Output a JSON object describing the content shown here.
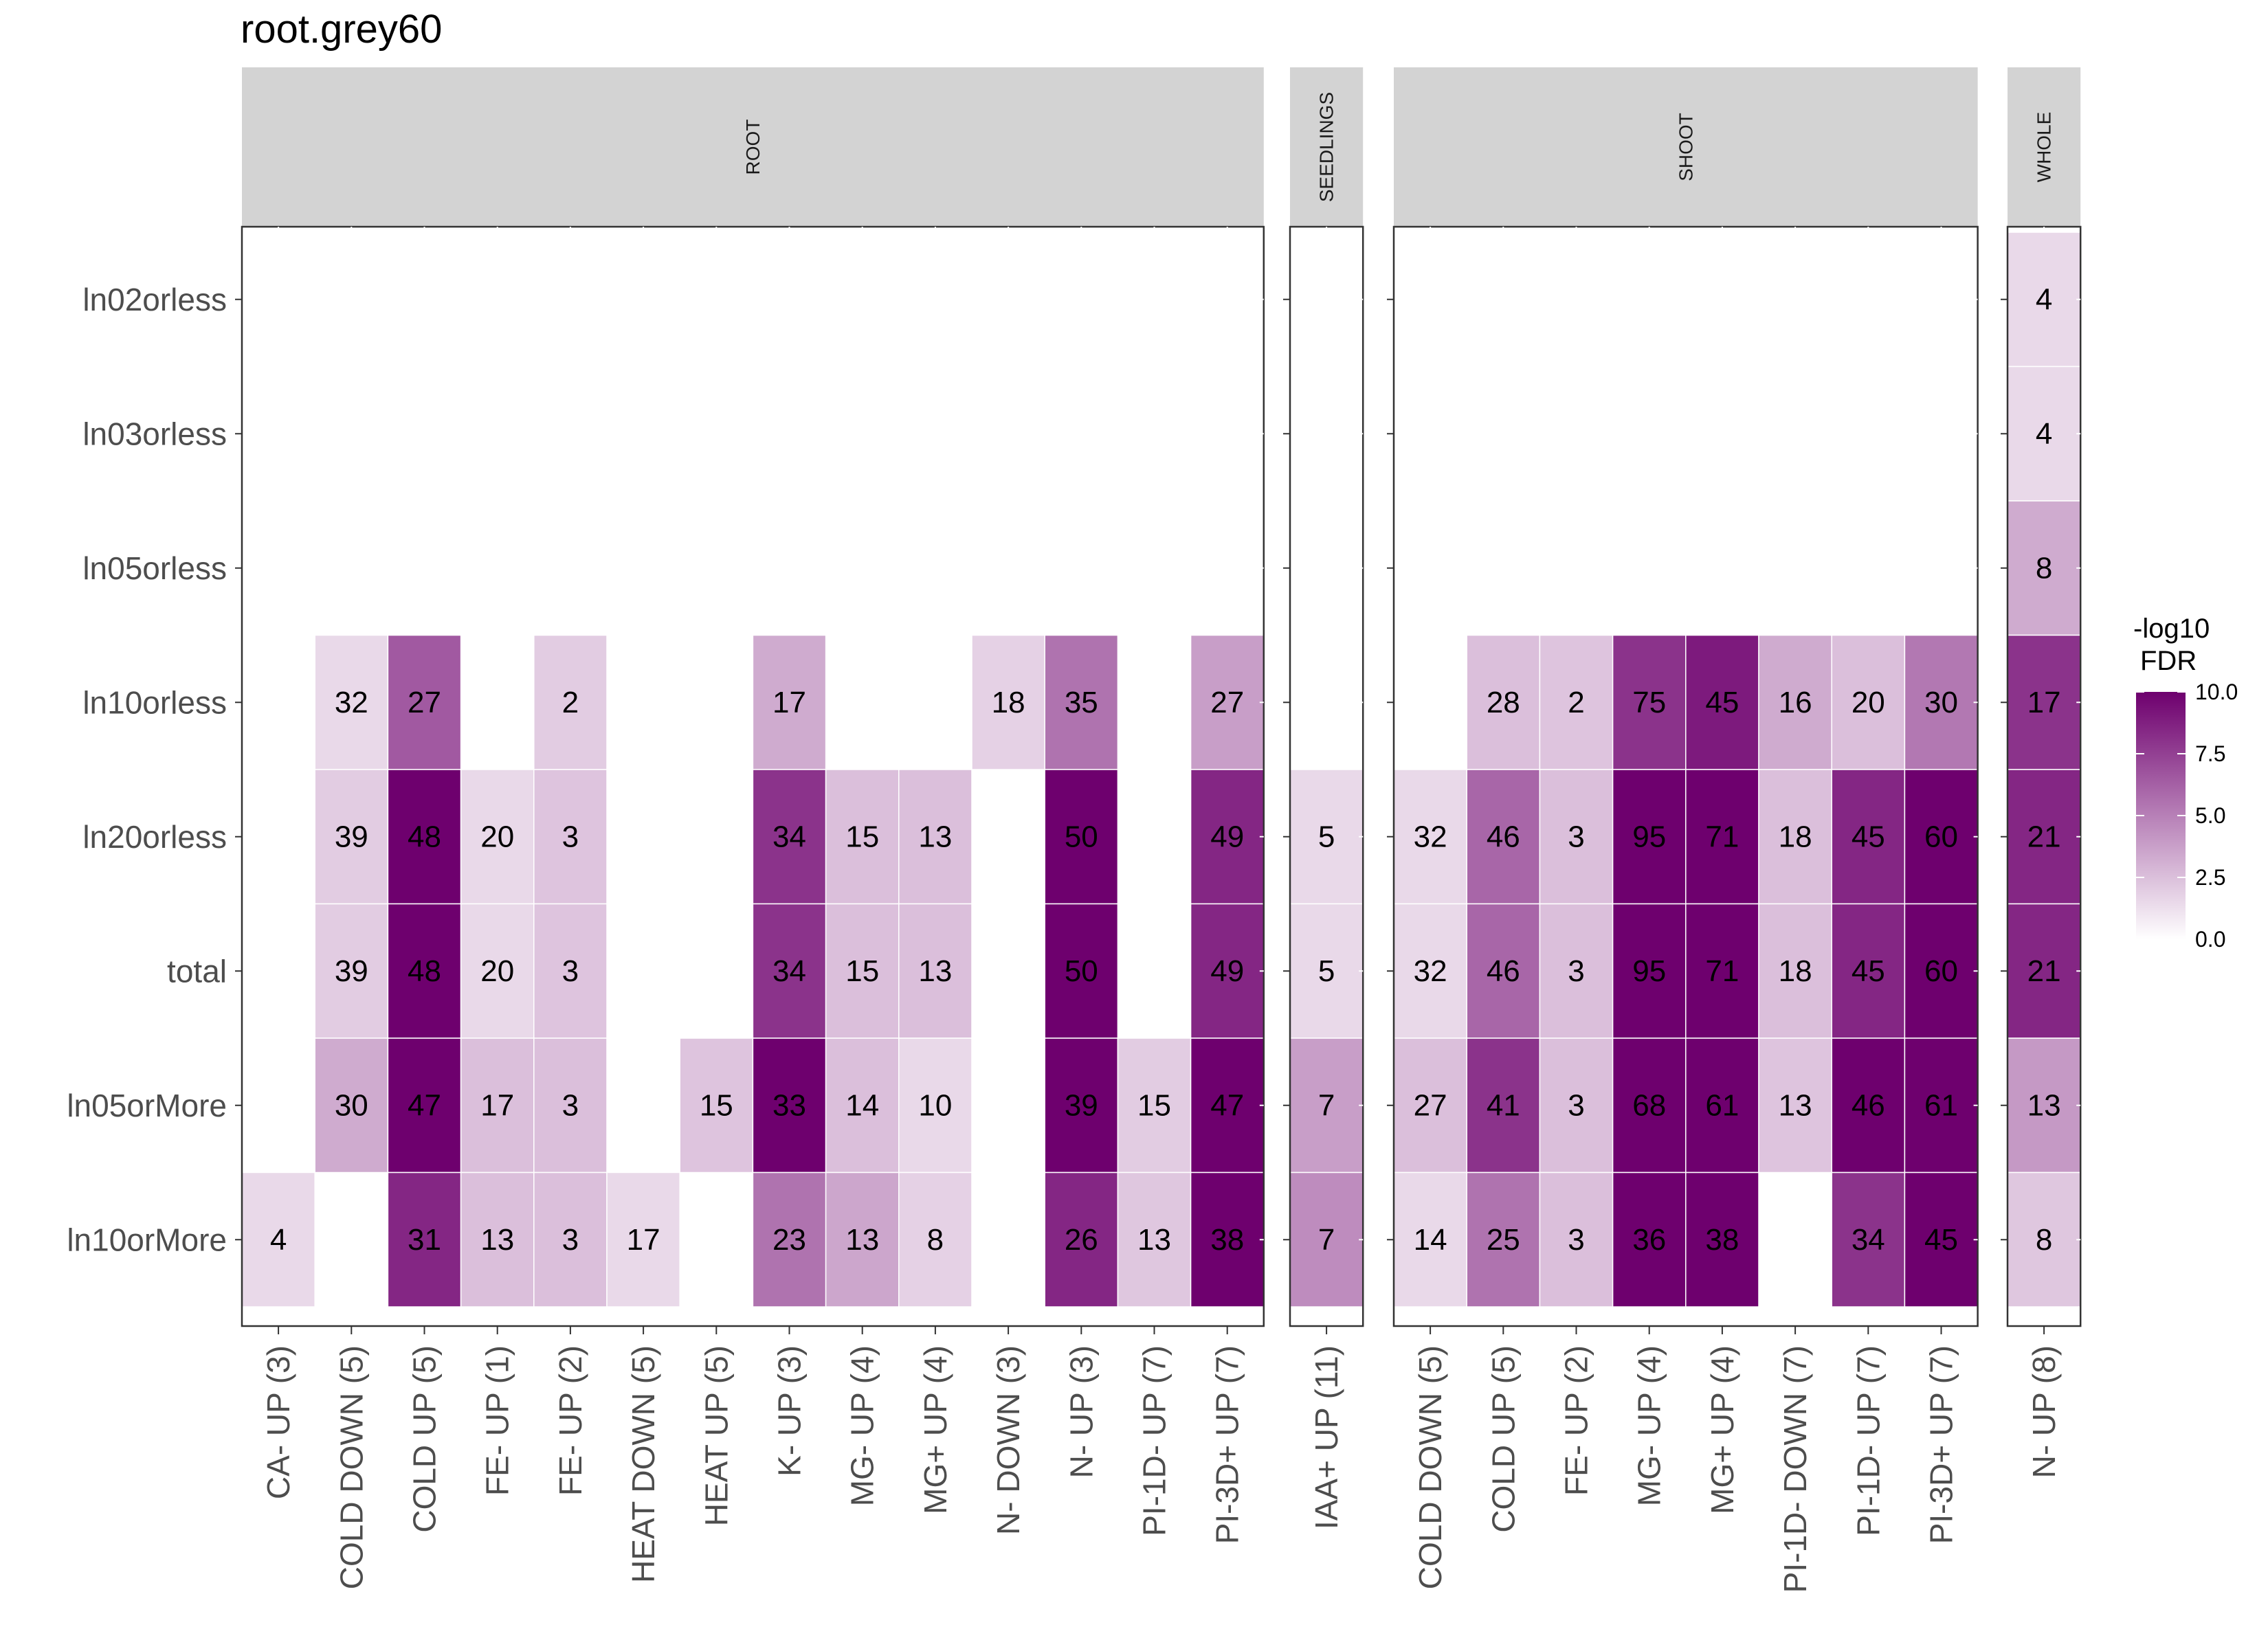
{
  "chart_data": {
    "type": "heatmap",
    "title": "root.grey60",
    "rows": [
      "ln02orless",
      "ln03orless",
      "ln05orless",
      "ln10orless",
      "ln20orless",
      "total",
      "ln05orMore",
      "ln10orMore"
    ],
    "legend": {
      "title_lines": [
        "-log10",
        "FDR"
      ],
      "ticks": [
        "10.0",
        "7.5",
        "5.0",
        "2.5",
        "0.0"
      ],
      "tick_values": [
        10,
        7.5,
        5,
        2.5,
        0
      ],
      "range": [
        0,
        10
      ],
      "low_color": "#ffffff",
      "high_color": "#6e006e"
    },
    "panels": [
      {
        "name": "ROOT",
        "columns": [
          "CA- UP (3)",
          "COLD DOWN (5)",
          "COLD UP (5)",
          "FE- UP (1)",
          "FE- UP (2)",
          "HEAT DOWN (5)",
          "HEAT UP (5)",
          "K- UP (3)",
          "MG- UP (4)",
          "MG+ UP (4)",
          "N- DOWN (3)",
          "N- UP (3)",
          "PI-1D- UP (7)",
          "PI-3D+ UP (7)"
        ],
        "cells": [
          [
            "ln10orless",
            "COLD DOWN (5)",
            32,
            1.5
          ],
          [
            "ln10orless",
            "COLD UP (5)",
            27,
            6.5
          ],
          [
            "ln10orless",
            "FE- UP (2)",
            2,
            2.0
          ],
          [
            "ln10orless",
            "K- UP (3)",
            17,
            3.3
          ],
          [
            "ln10orless",
            "N- DOWN (3)",
            18,
            1.8
          ],
          [
            "ln10orless",
            "N- UP (3)",
            35,
            5.5
          ],
          [
            "ln10orless",
            "PI-3D+ UP (7)",
            27,
            3.8
          ],
          [
            "ln20orless",
            "COLD DOWN (5)",
            39,
            2.0
          ],
          [
            "ln20orless",
            "COLD UP (5)",
            48,
            10.0
          ],
          [
            "ln20orless",
            "FE- UP (1)",
            20,
            1.5
          ],
          [
            "ln20orless",
            "FE- UP (2)",
            3,
            2.3
          ],
          [
            "ln20orless",
            "K- UP (3)",
            34,
            8.0
          ],
          [
            "ln20orless",
            "MG- UP (4)",
            15,
            2.5
          ],
          [
            "ln20orless",
            "MG+ UP (4)",
            13,
            2.5
          ],
          [
            "ln20orless",
            "N- UP (3)",
            50,
            10.0
          ],
          [
            "ln20orless",
            "PI-3D+ UP (7)",
            49,
            8.5
          ],
          [
            "total",
            "COLD DOWN (5)",
            39,
            2.0
          ],
          [
            "total",
            "COLD UP (5)",
            48,
            10.0
          ],
          [
            "total",
            "FE- UP (1)",
            20,
            1.5
          ],
          [
            "total",
            "FE- UP (2)",
            3,
            2.3
          ],
          [
            "total",
            "K- UP (3)",
            34,
            8.0
          ],
          [
            "total",
            "MG- UP (4)",
            15,
            2.5
          ],
          [
            "total",
            "MG+ UP (4)",
            13,
            2.5
          ],
          [
            "total",
            "N- UP (3)",
            50,
            10.0
          ],
          [
            "total",
            "PI-3D+ UP (7)",
            49,
            8.5
          ],
          [
            "ln05orMore",
            "COLD DOWN (5)",
            30,
            3.3
          ],
          [
            "ln05orMore",
            "COLD UP (5)",
            47,
            10.0
          ],
          [
            "ln05orMore",
            "FE- UP (1)",
            17,
            2.5
          ],
          [
            "ln05orMore",
            "FE- UP (2)",
            3,
            2.5
          ],
          [
            "ln05orMore",
            "HEAT UP (5)",
            15,
            2.3
          ],
          [
            "ln05orMore",
            "K- UP (3)",
            33,
            10.0
          ],
          [
            "ln05orMore",
            "MG- UP (4)",
            14,
            2.5
          ],
          [
            "ln05orMore",
            "MG+ UP (4)",
            10,
            1.5
          ],
          [
            "ln05orMore",
            "N- UP (3)",
            39,
            10.0
          ],
          [
            "ln05orMore",
            "PI-1D- UP (7)",
            15,
            2.0
          ],
          [
            "ln05orMore",
            "PI-3D+ UP (7)",
            47,
            10.0
          ],
          [
            "ln10orMore",
            "CA- UP (3)",
            4,
            1.5
          ],
          [
            "ln10orMore",
            "COLD UP (5)",
            31,
            8.5
          ],
          [
            "ln10orMore",
            "FE- UP (1)",
            13,
            2.5
          ],
          [
            "ln10orMore",
            "FE- UP (2)",
            3,
            2.5
          ],
          [
            "ln10orMore",
            "HEAT DOWN (5)",
            17,
            1.5
          ],
          [
            "ln10orMore",
            "K- UP (3)",
            23,
            5.5
          ],
          [
            "ln10orMore",
            "MG- UP (4)",
            13,
            3.5
          ],
          [
            "ln10orMore",
            "MG+ UP (4)",
            8,
            1.8
          ],
          [
            "ln10orMore",
            "N- UP (3)",
            26,
            8.5
          ],
          [
            "ln10orMore",
            "PI-1D- UP (7)",
            13,
            2.2
          ],
          [
            "ln10orMore",
            "PI-3D+ UP (7)",
            38,
            10.0
          ]
        ]
      },
      {
        "name": "SEEDLINGS",
        "columns": [
          "IAA+ UP (11)"
        ],
        "cells": [
          [
            "ln20orless",
            "IAA+ UP (11)",
            5,
            1.5
          ],
          [
            "total",
            "IAA+ UP (11)",
            5,
            1.5
          ],
          [
            "ln05orMore",
            "IAA+ UP (11)",
            7,
            3.8
          ],
          [
            "ln10orMore",
            "IAA+ UP (11)",
            7,
            4.5
          ]
        ]
      },
      {
        "name": "SHOOT",
        "columns": [
          "COLD DOWN (5)",
          "COLD UP (5)",
          "FE- UP (2)",
          "MG- UP (4)",
          "MG+ UP (4)",
          "PI-1D- DOWN (7)",
          "PI-1D- UP (7)",
          "PI-3D+ UP (7)"
        ],
        "cells": [
          [
            "ln10orless",
            "COLD UP (5)",
            28,
            2.5
          ],
          [
            "ln10orless",
            "FE- UP (2)",
            2,
            2.3
          ],
          [
            "ln10orless",
            "MG- UP (4)",
            75,
            8.0
          ],
          [
            "ln10orless",
            "MG+ UP (4)",
            45,
            9.0
          ],
          [
            "ln10orless",
            "PI-1D- DOWN (7)",
            16,
            3.3
          ],
          [
            "ln10orless",
            "PI-1D- UP (7)",
            20,
            2.5
          ],
          [
            "ln10orless",
            "PI-3D+ UP (7)",
            30,
            5.3
          ],
          [
            "ln20orless",
            "COLD DOWN (5)",
            32,
            1.5
          ],
          [
            "ln20orless",
            "COLD UP (5)",
            46,
            6.0
          ],
          [
            "ln20orless",
            "FE- UP (2)",
            3,
            2.5
          ],
          [
            "ln20orless",
            "MG- UP (4)",
            95,
            10.0
          ],
          [
            "ln20orless",
            "MG+ UP (4)",
            71,
            10.0
          ],
          [
            "ln20orless",
            "PI-1D- DOWN (7)",
            18,
            2.5
          ],
          [
            "ln20orless",
            "PI-1D- UP (7)",
            45,
            8.5
          ],
          [
            "ln20orless",
            "PI-3D+ UP (7)",
            60,
            10.0
          ],
          [
            "total",
            "COLD DOWN (5)",
            32,
            1.5
          ],
          [
            "total",
            "COLD UP (5)",
            46,
            6.0
          ],
          [
            "total",
            "FE- UP (2)",
            3,
            2.5
          ],
          [
            "total",
            "MG- UP (4)",
            95,
            10.0
          ],
          [
            "total",
            "MG+ UP (4)",
            71,
            10.0
          ],
          [
            "total",
            "PI-1D- DOWN (7)",
            18,
            2.5
          ],
          [
            "total",
            "PI-1D- UP (7)",
            45,
            8.5
          ],
          [
            "total",
            "PI-3D+ UP (7)",
            60,
            10.0
          ],
          [
            "ln05orMore",
            "COLD DOWN (5)",
            27,
            2.5
          ],
          [
            "ln05orMore",
            "COLD UP (5)",
            41,
            8.0
          ],
          [
            "ln05orMore",
            "FE- UP (2)",
            3,
            2.5
          ],
          [
            "ln05orMore",
            "MG- UP (4)",
            68,
            10.0
          ],
          [
            "ln05orMore",
            "MG+ UP (4)",
            61,
            10.0
          ],
          [
            "ln05orMore",
            "PI-1D- DOWN (7)",
            13,
            2.3
          ],
          [
            "ln05orMore",
            "PI-1D- UP (7)",
            46,
            10.0
          ],
          [
            "ln05orMore",
            "PI-3D+ UP (7)",
            61,
            10.0
          ],
          [
            "ln10orMore",
            "COLD DOWN (5)",
            14,
            1.5
          ],
          [
            "ln10orMore",
            "COLD UP (5)",
            25,
            5.5
          ],
          [
            "ln10orMore",
            "FE- UP (2)",
            3,
            2.5
          ],
          [
            "ln10orMore",
            "MG- UP (4)",
            36,
            10.0
          ],
          [
            "ln10orMore",
            "MG+ UP (4)",
            38,
            10.0
          ],
          [
            "ln10orMore",
            "PI-1D- UP (7)",
            34,
            8.0
          ],
          [
            "ln10orMore",
            "PI-3D+ UP (7)",
            45,
            10.0
          ]
        ]
      },
      {
        "name": "WHOLE",
        "columns": [
          "N- UP (8)"
        ],
        "cells": [
          [
            "ln02orless",
            "N- UP (8)",
            4,
            1.5
          ],
          [
            "ln03orless",
            "N- UP (8)",
            4,
            1.5
          ],
          [
            "ln05orless",
            "N- UP (8)",
            8,
            3.3
          ],
          [
            "ln10orless",
            "N- UP (8)",
            17,
            8.0
          ],
          [
            "ln20orless",
            "N- UP (8)",
            21,
            8.5
          ],
          [
            "total",
            "N- UP (8)",
            21,
            8.5
          ],
          [
            "ln05orMore",
            "N- UP (8)",
            13,
            4.0
          ],
          [
            "ln10orMore",
            "N- UP (8)",
            8,
            2.2
          ]
        ]
      }
    ]
  }
}
